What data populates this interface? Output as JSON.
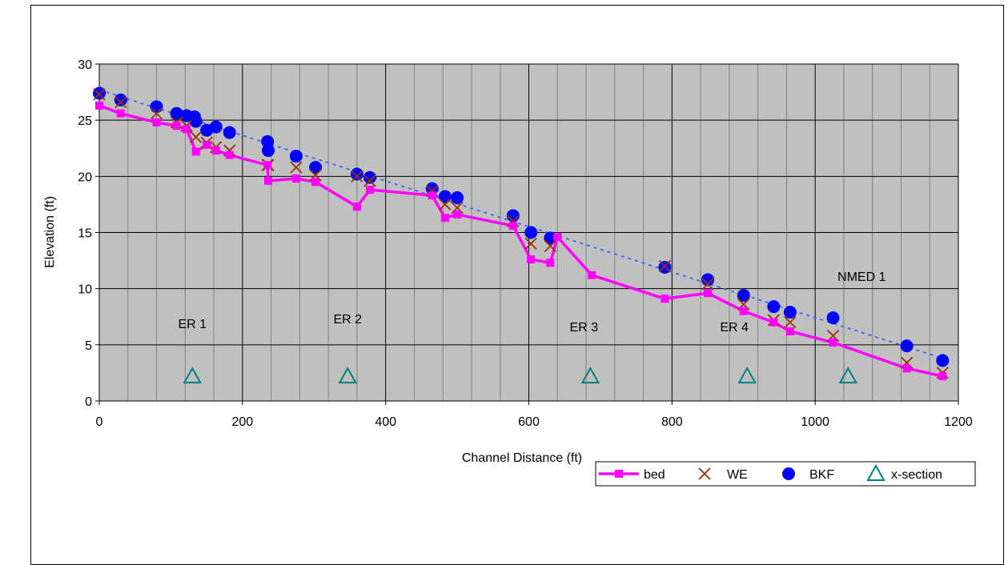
{
  "chart_data": {
    "type": "line",
    "title": "",
    "xlabel": "Channel Distance (ft)",
    "ylabel": "Elevation (ft)",
    "xlim": [
      0,
      1200
    ],
    "ylim": [
      0,
      30
    ],
    "x_ticks": [
      "0",
      "200",
      "400",
      "600",
      "800",
      "1000",
      "1200"
    ],
    "y_ticks": [
      "0",
      "5",
      "10",
      "15",
      "20",
      "25",
      "30"
    ],
    "grid": true,
    "legend_position": "bottom-right",
    "series": [
      {
        "name": "bed",
        "kind": "line-marker",
        "color": "#ff00ff",
        "points": [
          [
            0,
            26.3
          ],
          [
            30,
            25.6
          ],
          [
            80,
            24.8
          ],
          [
            108,
            24.5
          ],
          [
            122,
            24.2
          ],
          [
            135,
            22.2
          ],
          [
            150,
            22.8
          ],
          [
            163,
            22.3
          ],
          [
            182,
            21.9
          ],
          [
            235,
            21.0
          ],
          [
            236,
            19.6
          ],
          [
            275,
            19.8
          ],
          [
            302,
            19.5
          ],
          [
            360,
            17.3
          ],
          [
            378,
            18.8
          ],
          [
            465,
            18.3
          ],
          [
            483,
            16.3
          ],
          [
            500,
            16.6
          ],
          [
            578,
            15.6
          ],
          [
            603,
            12.6
          ],
          [
            630,
            12.3
          ],
          [
            640,
            14.6
          ],
          [
            688,
            11.2
          ],
          [
            790,
            9.1
          ],
          [
            850,
            9.6
          ],
          [
            900,
            8.0
          ],
          [
            942,
            7.0
          ],
          [
            965,
            6.2
          ],
          [
            1025,
            5.2
          ],
          [
            1128,
            2.9
          ],
          [
            1178,
            2.2
          ]
        ]
      },
      {
        "name": "WE",
        "kind": "marker-x",
        "color": "#993300",
        "points": [
          [
            0,
            27.3
          ],
          [
            30,
            26.6
          ],
          [
            80,
            25.6
          ],
          [
            108,
            24.8
          ],
          [
            122,
            24.5
          ],
          [
            135,
            23.5
          ],
          [
            150,
            23.0
          ],
          [
            163,
            22.6
          ],
          [
            182,
            22.3
          ],
          [
            235,
            21.0
          ],
          [
            236,
            21.0
          ],
          [
            275,
            20.8
          ],
          [
            302,
            20.1
          ],
          [
            360,
            20.0
          ],
          [
            378,
            19.6
          ],
          [
            465,
            18.7
          ],
          [
            483,
            17.5
          ],
          [
            500,
            17.2
          ],
          [
            578,
            16.0
          ],
          [
            603,
            14.0
          ],
          [
            630,
            13.8
          ],
          [
            790,
            12.0
          ],
          [
            850,
            10.4
          ],
          [
            900,
            8.6
          ],
          [
            942,
            7.2
          ],
          [
            965,
            7.0
          ],
          [
            1025,
            5.8
          ],
          [
            1128,
            3.4
          ],
          [
            1178,
            2.5
          ]
        ]
      },
      {
        "name": "BKF",
        "kind": "marker-circle",
        "color": "#0000ff",
        "points": [
          [
            0,
            27.4
          ],
          [
            30,
            26.8
          ],
          [
            80,
            26.2
          ],
          [
            108,
            25.6
          ],
          [
            122,
            25.4
          ],
          [
            133,
            25.3
          ],
          [
            135,
            24.9
          ],
          [
            150,
            24.1
          ],
          [
            163,
            24.4
          ],
          [
            182,
            23.9
          ],
          [
            235,
            23.1
          ],
          [
            236,
            22.3
          ],
          [
            275,
            21.8
          ],
          [
            302,
            20.8
          ],
          [
            360,
            20.2
          ],
          [
            378,
            19.9
          ],
          [
            465,
            18.9
          ],
          [
            483,
            18.2
          ],
          [
            500,
            18.1
          ],
          [
            578,
            16.5
          ],
          [
            603,
            15.0
          ],
          [
            630,
            14.5
          ],
          [
            790,
            11.9
          ],
          [
            850,
            10.8
          ],
          [
            900,
            9.4
          ],
          [
            942,
            8.4
          ],
          [
            965,
            7.9
          ],
          [
            1025,
            7.4
          ],
          [
            1128,
            4.9
          ],
          [
            1178,
            3.6
          ]
        ]
      },
      {
        "name": "x-section",
        "kind": "marker-triangle",
        "color": "#008080",
        "points": [
          [
            130,
            2.2
          ],
          [
            347,
            2.2
          ],
          [
            686,
            2.2
          ],
          [
            905,
            2.2
          ],
          [
            1046,
            2.2
          ]
        ]
      },
      {
        "name": "",
        "kind": "trendline",
        "color": "#3366ff",
        "points": [
          [
            0,
            27.7
          ],
          [
            1178,
            3.8
          ]
        ]
      }
    ],
    "annotations": [
      {
        "text": "ER 1",
        "x": 130,
        "y": 6.5
      },
      {
        "text": "ER 2",
        "x": 347,
        "y": 6.9
      },
      {
        "text": "ER 3",
        "x": 677,
        "y": 6.2
      },
      {
        "text": "ER 4",
        "x": 887,
        "y": 6.2
      },
      {
        "text": "NMED 1",
        "x": 1065,
        "y": 10.7
      }
    ]
  },
  "legend": {
    "items": [
      {
        "label": "bed",
        "kind": "line-marker",
        "color": "#ff00ff"
      },
      {
        "label": "WE",
        "kind": "marker-x",
        "color": "#993300"
      },
      {
        "label": "BKF",
        "kind": "marker-circle",
        "color": "#0000ff"
      },
      {
        "label": "x-section",
        "kind": "marker-triangle",
        "color": "#008080"
      }
    ]
  },
  "colors": {
    "plot_background": "#c0c0c0",
    "major_grid": "#000000",
    "minor_grid": "#808080"
  }
}
